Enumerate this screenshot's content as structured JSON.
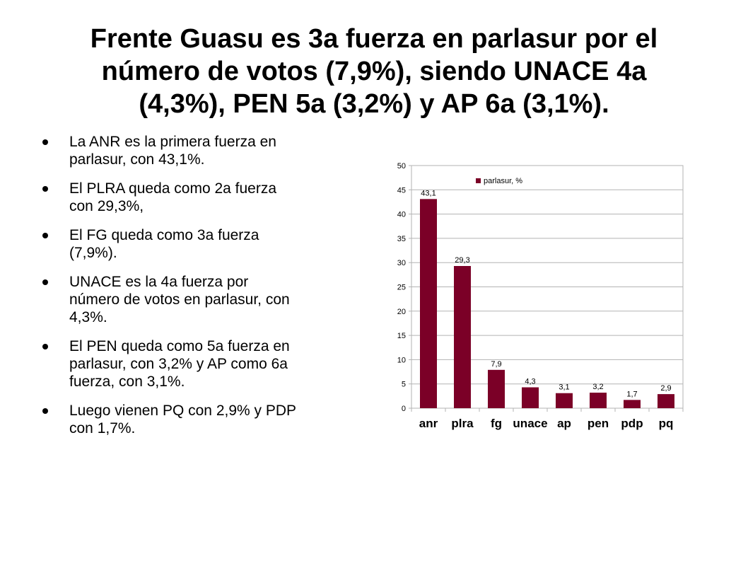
{
  "slide": {
    "title_lines": [
      "Frente Guasu es 3a fuerza en parlasur por el",
      "número de votos (7,9%), siendo UNACE 4a",
      "(4,3%), PEN 5a (3,2%) y AP 6a (3,1%)."
    ],
    "bullets": [
      "La ANR es la primera fuerza en\nparlasur, con 43,1%.",
      "El PLRA queda como 2a fuerza\ncon 29,3%,",
      "El FG queda como 3a fuerza\n(7,9%).",
      "UNACE es la 4a fuerza por\nnúmero de votos en parlasur, con\n4,3%.",
      "El PEN queda como 5a fuerza en\nparlasur, con 3,2% y AP como 6a\nfuerza, con 3,1%.",
      "Luego vienen PQ con 2,9% y PDP\ncon 1,7%."
    ]
  },
  "chart_data": {
    "type": "bar",
    "categories": [
      "anr",
      "plra",
      "fg",
      "unace",
      "ap",
      "pen",
      "pdp",
      "pq"
    ],
    "series": [
      {
        "name": "parlasur, %",
        "values": [
          43.1,
          29.3,
          7.9,
          4.3,
          3.1,
          3.2,
          1.7,
          2.9
        ],
        "labels": [
          "43,1",
          "29,3",
          "7,9",
          "4,3",
          "3,1",
          "3,2",
          "1,7",
          "2,9"
        ]
      }
    ],
    "ylim": [
      0,
      50
    ],
    "yticks": [
      0,
      5,
      10,
      15,
      20,
      25,
      30,
      35,
      40,
      45,
      50
    ],
    "grid": true,
    "legend_position": "top-center",
    "bar_color": "#7b0027",
    "grid_color": "#b3b3b3"
  }
}
